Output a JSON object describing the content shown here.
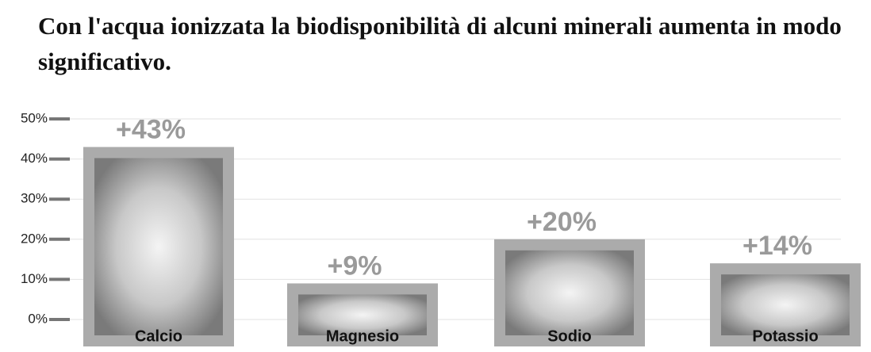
{
  "chart_data": {
    "type": "bar",
    "title": "Con l'acqua ionizzata la biodisponibilità di alcuni minerali aumenta in modo significativo.",
    "categories": [
      "Calcio",
      "Magnesio",
      "Sodio",
      "Potassio"
    ],
    "values": [
      43,
      9,
      20,
      14
    ],
    "value_labels": [
      "+43%",
      "+9%",
      "+20%",
      "+14%"
    ],
    "color": "#ababab",
    "ylim": [
      0,
      50
    ],
    "yticks": [
      {
        "value": 0,
        "label": "0%"
      },
      {
        "value": 10,
        "label": "10%"
      },
      {
        "value": 20,
        "label": "20%"
      },
      {
        "value": 30,
        "label": "30%"
      },
      {
        "value": 40,
        "label": "40%"
      },
      {
        "value": 50,
        "label": "50%"
      }
    ],
    "grid": true
  }
}
